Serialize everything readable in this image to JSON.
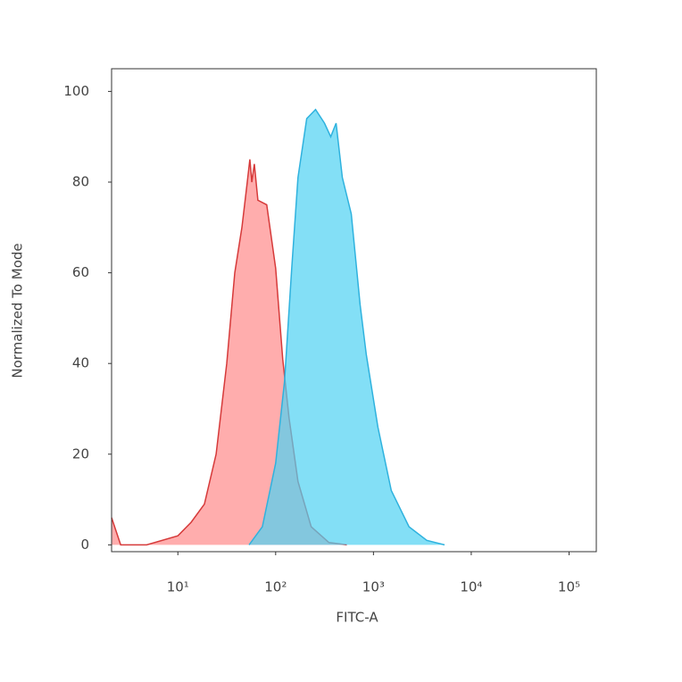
{
  "chart_data": {
    "type": "area",
    "x_label": "FITC-A",
    "y_label": "Normalized To Mode",
    "xscale": "log",
    "xlim": [
      2.1,
      190000
    ],
    "ylim": [
      -1.5,
      105
    ],
    "xticks": [
      {
        "value": 10,
        "label": "10¹"
      },
      {
        "value": 100,
        "label": "10²"
      },
      {
        "value": 1000,
        "label": "10³"
      },
      {
        "value": 10000,
        "label": "10⁴"
      },
      {
        "value": 100000,
        "label": "10⁵"
      }
    ],
    "yticks": [
      0,
      20,
      40,
      60,
      80,
      100
    ],
    "series": [
      {
        "color": "#d63a3a",
        "fill": "#ff8a8a",
        "x": [
          2.1,
          2.6,
          4.8,
          10,
          13.7,
          18.7,
          24.6,
          31.6,
          38.2,
          45.2,
          51.2,
          54.5,
          57,
          60.5,
          65.8,
          81.1,
          100,
          118,
          137,
          169,
          231,
          351,
          534
        ],
        "values": [
          6,
          0,
          0,
          2,
          5,
          9,
          20,
          40,
          60,
          70,
          80,
          85,
          80,
          84,
          76,
          75,
          61,
          41,
          28,
          14,
          4,
          0.5,
          0
        ]
      },
      {
        "color": "#2fb2de",
        "fill": "#4fd2f2",
        "x": [
          53.4,
          73.1,
          100,
          123,
          146,
          169,
          208,
          256,
          316,
          366,
          415,
          481,
          593,
          731,
          845,
          1110,
          1520,
          2310,
          3510,
          5330
        ],
        "values": [
          0,
          4,
          18,
          36,
          61,
          81,
          94,
          96,
          93,
          90,
          93,
          81,
          73,
          53,
          42,
          26,
          12,
          4,
          1,
          0
        ]
      }
    ]
  }
}
